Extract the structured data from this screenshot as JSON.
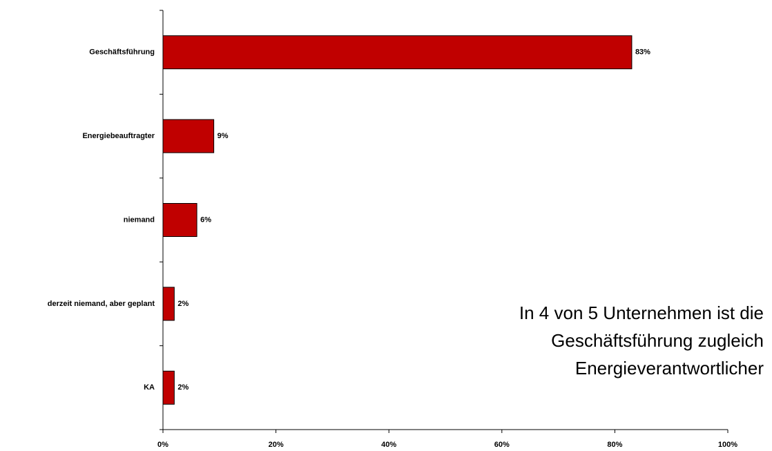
{
  "chart_data": {
    "type": "barh",
    "categories": [
      "Geschäftsführung",
      "Energiebeauftragter",
      "niemand",
      "derzeit niemand, aber geplant",
      "KA"
    ],
    "values": [
      83,
      9,
      6,
      2,
      2
    ],
    "value_labels": [
      "83%",
      "9%",
      "6%",
      "2%",
      "2%"
    ],
    "color": "#c00000",
    "xlim": [
      0,
      100
    ],
    "xticks": [
      {
        "value": 0,
        "label": "0%"
      },
      {
        "value": 20,
        "label": "20%"
      },
      {
        "value": 40,
        "label": "40%"
      },
      {
        "value": 60,
        "label": "60%"
      },
      {
        "value": 80,
        "label": "80%"
      },
      {
        "value": 100,
        "label": "100%"
      }
    ],
    "annotation": [
      "In 4 von 5 Unternehmen ist die",
      "Geschäftsführung zugleich",
      "Energieverantwortlicher"
    ]
  }
}
